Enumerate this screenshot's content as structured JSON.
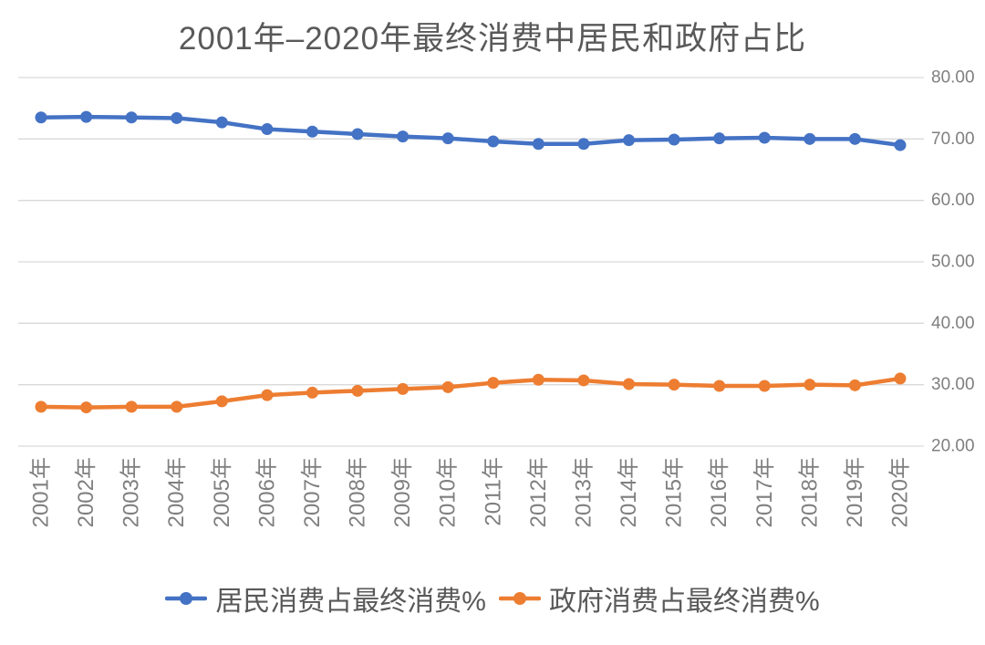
{
  "chart": {
    "title": "2001年–2020年最终消费中居民和政府占比"
  },
  "chart_data": {
    "type": "line",
    "title": "2001年–2020年最终消费中居民和政府占比",
    "categories": [
      "2001年",
      "2002年",
      "2003年",
      "2004年",
      "2005年",
      "2006年",
      "2007年",
      "2008年",
      "2009年",
      "2010年",
      "2011年",
      "2012年",
      "2013年",
      "2014年",
      "2015年",
      "2016年",
      "2017年",
      "2018年",
      "2019年",
      "2020年"
    ],
    "series": [
      {
        "name": "居民消费占最终消费%",
        "color": "#4472C4",
        "values": [
          73.5,
          73.6,
          73.5,
          73.4,
          72.7,
          71.6,
          71.2,
          70.8,
          70.4,
          70.1,
          69.6,
          69.2,
          69.2,
          69.8,
          69.9,
          70.1,
          70.2,
          70.0,
          70.0,
          69.0
        ]
      },
      {
        "name": "政府消费占最终消费%",
        "color": "#ED7D31",
        "values": [
          26.4,
          26.3,
          26.4,
          26.4,
          27.3,
          28.3,
          28.7,
          29.0,
          29.3,
          29.6,
          30.3,
          30.8,
          30.7,
          30.1,
          30.0,
          29.8,
          29.8,
          30.0,
          29.9,
          31.0
        ]
      }
    ],
    "y_axis": {
      "labels": [
        "80.00",
        "70.00",
        "60.00",
        "50.00",
        "40.00",
        "30.00",
        "20.00"
      ],
      "values": [
        80,
        70,
        60,
        50,
        40,
        30,
        20
      ],
      "side": "right"
    },
    "ylim": [
      20,
      80
    ],
    "xlabel": "",
    "ylabel": "",
    "grid": "horizontal",
    "grid_color": "#D9D9D9",
    "axis_label_color": "#7F7F7F",
    "title_color": "#595959",
    "legend_position": "bottom"
  },
  "legend": {
    "items": [
      {
        "label": "居民消费占最终消费%",
        "color": "#4472C4"
      },
      {
        "label": "政府消费占最终消费%",
        "color": "#ED7D31"
      }
    ]
  }
}
